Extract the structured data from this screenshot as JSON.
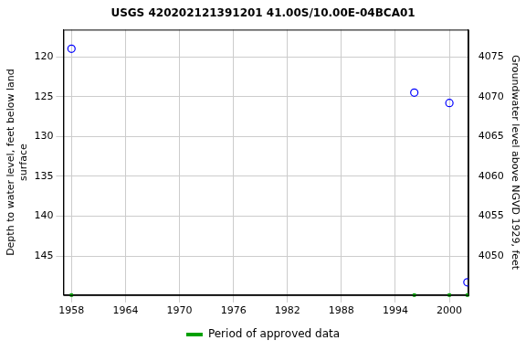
{
  "chart_data": {
    "type": "scatter",
    "title": "USGS 420202121391201 41.00S/10.00E-04BCA01",
    "x_label": null,
    "y_label": [
      "Depth to water level, feet below land",
      "surface"
    ],
    "y2_label": "Groundwater level above NGVD 1929, feet",
    "series": [
      {
        "color": "#0000ff",
        "marker": "circle",
        "x": [
          1958.0,
          1996.1,
          2000.0,
          2002.0
        ],
        "values": [
          119.0,
          124.5,
          125.8,
          148.3
        ]
      }
    ],
    "approved_periods": {
      "name": "Period of approved data",
      "color": "#00a000",
      "x": [
        1958.0,
        1996.1,
        2000.0,
        2002.0
      ]
    },
    "xlim": [
      1957.1,
      2002.1
    ],
    "xticks": [
      1958,
      1964,
      1970,
      1976,
      1982,
      1988,
      1994,
      2000
    ],
    "ylim": [
      116.6,
      149.9
    ],
    "yticks": [
      120,
      125,
      130,
      135,
      140,
      145
    ],
    "y2lim": [
      4045.1,
      4078.4
    ],
    "y2ticks": [
      4050,
      4055,
      4060,
      4065,
      4070,
      4075
    ],
    "grid": true,
    "legend": "bottom"
  }
}
